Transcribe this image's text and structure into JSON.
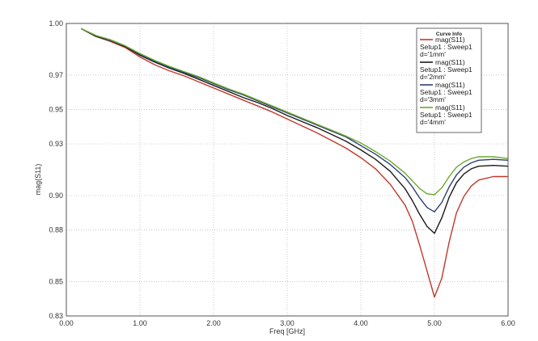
{
  "chart_data": {
    "type": "line",
    "title": "",
    "xlabel": "Freq [GHz]",
    "ylabel": "mag(S11)",
    "xlim": [
      0,
      6
    ],
    "ylim": [
      0.83,
      1.0
    ],
    "x_ticks": [
      0,
      1,
      2,
      3,
      4,
      5,
      6
    ],
    "x_tick_labels": [
      "0.00",
      "1.00",
      "2.00",
      "3.00",
      "4.00",
      "5.00",
      "6.00"
    ],
    "y_ticks": [
      0.83,
      0.85,
      0.88,
      0.9,
      0.93,
      0.95,
      0.97,
      1.0
    ],
    "y_tick_labels": [
      "0.83",
      "0.85",
      "0.88",
      "0.90",
      "0.93",
      "0.95",
      "0.97",
      "1.00"
    ],
    "grid": true,
    "legend": {
      "title": "Curve Info",
      "position": "top-right"
    },
    "x": [
      0.2,
      0.4,
      0.6,
      0.8,
      1.0,
      1.2,
      1.4,
      1.6,
      1.8,
      2.0,
      2.2,
      2.4,
      2.6,
      2.8,
      3.0,
      3.2,
      3.4,
      3.6,
      3.8,
      4.0,
      4.2,
      4.4,
      4.6,
      4.7,
      4.8,
      4.9,
      5.0,
      5.1,
      5.2,
      5.3,
      5.4,
      5.5,
      5.6,
      5.8,
      6.0
    ],
    "series": [
      {
        "name": "mag(S11)",
        "lines": [
          "mag(S11)",
          "Setup1 : Sweep1",
          "d='1mm'"
        ],
        "color": "#c0392b",
        "values": [
          0.997,
          0.9925,
          0.9895,
          0.986,
          0.9805,
          0.976,
          0.9725,
          0.9695,
          0.966,
          0.9625,
          0.959,
          0.9555,
          0.952,
          0.9485,
          0.9445,
          0.9405,
          0.9365,
          0.932,
          0.9275,
          0.922,
          0.9155,
          0.9065,
          0.8945,
          0.885,
          0.871,
          0.856,
          0.841,
          0.852,
          0.873,
          0.89,
          0.8995,
          0.9055,
          0.909,
          0.911,
          0.911
        ]
      },
      {
        "name": "mag(S11)",
        "lines": [
          "mag(S11)",
          "Setup1 : Sweep1",
          "d='2mm'"
        ],
        "color": "#1a1a1a",
        "values": [
          0.997,
          0.9925,
          0.99,
          0.9865,
          0.9815,
          0.9775,
          0.974,
          0.971,
          0.9675,
          0.964,
          0.9605,
          0.957,
          0.954,
          0.9505,
          0.9465,
          0.943,
          0.9395,
          0.9355,
          0.9315,
          0.9265,
          0.921,
          0.914,
          0.904,
          0.897,
          0.889,
          0.882,
          0.878,
          0.887,
          0.899,
          0.9075,
          0.9125,
          0.9155,
          0.917,
          0.9175,
          0.917
        ]
      },
      {
        "name": "mag(S11)",
        "lines": [
          "mag(S11)",
          "Setup1 : Sweep1",
          "d='3mm'"
        ],
        "color": "#2c3e7a",
        "values": [
          0.997,
          0.993,
          0.99,
          0.987,
          0.982,
          0.978,
          0.9745,
          0.9715,
          0.9685,
          0.965,
          0.9615,
          0.9585,
          0.955,
          0.9515,
          0.948,
          0.9445,
          0.941,
          0.9375,
          0.934,
          0.929,
          0.924,
          0.918,
          0.9105,
          0.905,
          0.8985,
          0.893,
          0.8905,
          0.896,
          0.905,
          0.912,
          0.9165,
          0.919,
          0.9205,
          0.921,
          0.9205
        ]
      },
      {
        "name": "mag(S11)",
        "lines": [
          "mag(S11)",
          "Setup1 : Sweep1",
          "d='4mm'"
        ],
        "color": "#6aaa2a",
        "values": [
          0.997,
          0.993,
          0.9905,
          0.987,
          0.9825,
          0.9785,
          0.975,
          0.972,
          0.969,
          0.9655,
          0.962,
          0.959,
          0.9555,
          0.952,
          0.9485,
          0.945,
          0.9415,
          0.938,
          0.9345,
          0.9305,
          0.9255,
          0.92,
          0.913,
          0.9085,
          0.904,
          0.901,
          0.9005,
          0.9045,
          0.911,
          0.9165,
          0.9195,
          0.9215,
          0.9225,
          0.9225,
          0.9215
        ]
      }
    ]
  }
}
